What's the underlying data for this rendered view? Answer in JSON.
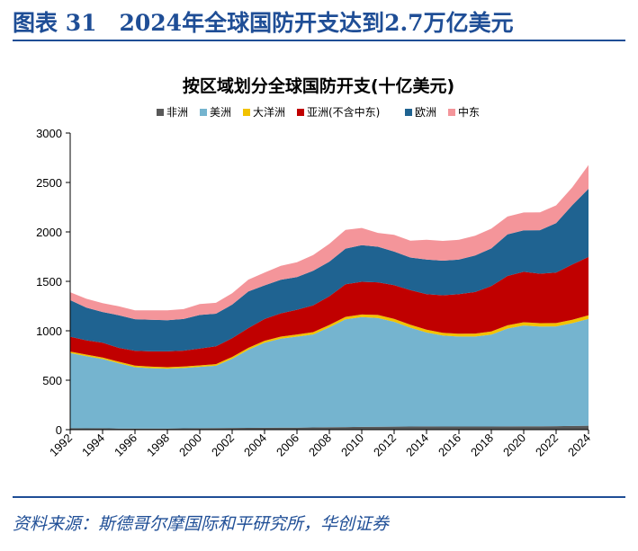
{
  "figure_title": "图表 31　2024年全球国防开支达到2.7万亿美元",
  "source": "资料来源：斯德哥尔摩国际和平研究所，华创证券",
  "chart_data": {
    "type": "area",
    "stacked": true,
    "title": "按区域划分全球国防开支(十亿美元)",
    "xlabel": "",
    "ylabel": "",
    "ylim": [
      0,
      3000
    ],
    "yticks": [
      0,
      500,
      1000,
      1500,
      2000,
      2500,
      3000
    ],
    "xticks": [
      1992,
      1994,
      1996,
      1998,
      2000,
      2002,
      2004,
      2006,
      2008,
      2010,
      2012,
      2014,
      2016,
      2018,
      2020,
      2022,
      2024
    ],
    "x": [
      1992,
      1993,
      1994,
      1995,
      1996,
      1997,
      1998,
      1999,
      2000,
      2001,
      2002,
      2003,
      2004,
      2005,
      2006,
      2007,
      2008,
      2009,
      2010,
      2011,
      2012,
      2013,
      2014,
      2015,
      2016,
      2017,
      2018,
      2019,
      2020,
      2021,
      2022,
      2023,
      2024
    ],
    "grid": false,
    "legend_position": "top",
    "series": [
      {
        "name": "非洲",
        "color": "#595959",
        "values": [
          15,
          14,
          15,
          12,
          12,
          12,
          12,
          14,
          15,
          16,
          17,
          18,
          19,
          20,
          21,
          23,
          25,
          26,
          28,
          30,
          31,
          32,
          33,
          32,
          32,
          32,
          32,
          33,
          34,
          34,
          35,
          37,
          40
        ]
      },
      {
        "name": "美洲",
        "color": "#75b4cf",
        "values": [
          760,
          730,
          700,
          660,
          620,
          610,
          605,
          610,
          620,
          630,
          700,
          790,
          860,
          900,
          920,
          940,
          1010,
          1090,
          1110,
          1100,
          1060,
          1000,
          950,
          920,
          910,
          910,
          930,
          990,
          1020,
          1010,
          1010,
          1040,
          1080
        ]
      },
      {
        "name": "大洋洲",
        "color": "#f2c200",
        "values": [
          15,
          15,
          15,
          15,
          15,
          15,
          15,
          15,
          15,
          17,
          18,
          19,
          20,
          21,
          22,
          23,
          24,
          25,
          27,
          30,
          30,
          29,
          28,
          27,
          28,
          30,
          31,
          32,
          32,
          33,
          33,
          34,
          36
        ]
      },
      {
        "name": "亚洲(不含中东)",
        "color": "#c00000",
        "values": [
          150,
          145,
          150,
          140,
          150,
          155,
          160,
          160,
          170,
          180,
          190,
          200,
          220,
          235,
          250,
          270,
          290,
          330,
          330,
          330,
          340,
          350,
          360,
          380,
          400,
          420,
          460,
          500,
          510,
          500,
          510,
          560,
          590
        ]
      },
      {
        "name": "欧洲",
        "color": "#1f6391",
        "values": [
          370,
          330,
          310,
          330,
          320,
          320,
          315,
          320,
          340,
          330,
          340,
          370,
          340,
          340,
          330,
          350,
          350,
          360,
          370,
          360,
          340,
          330,
          350,
          350,
          350,
          370,
          380,
          420,
          420,
          440,
          500,
          600,
          690
        ]
      },
      {
        "name": "中东",
        "color": "#f4959a",
        "values": [
          80,
          90,
          90,
          90,
          90,
          95,
          100,
          100,
          110,
          110,
          115,
          120,
          130,
          140,
          150,
          160,
          180,
          190,
          175,
          140,
          170,
          170,
          200,
          200,
          200,
          200,
          200,
          180,
          180,
          180,
          180,
          180,
          240
        ]
      }
    ]
  }
}
